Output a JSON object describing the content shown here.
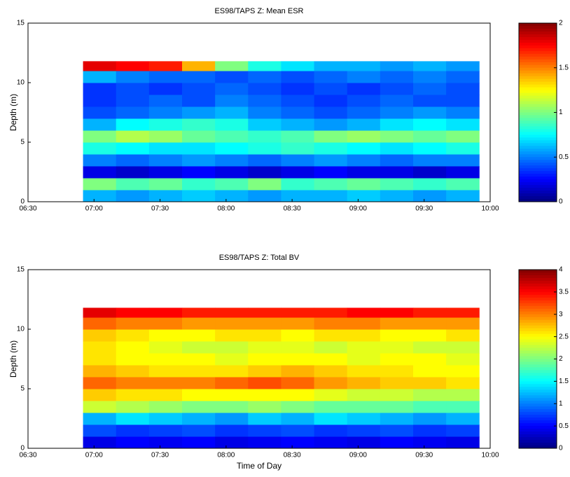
{
  "chart_data": [
    {
      "type": "heatmap",
      "title": "ES98/TAPS Z: Mean ESR",
      "ylabel": "Depth (m)",
      "colormap": "jet",
      "xlim": [
        "06:30",
        "10:00"
      ],
      "xticks": [
        "06:30",
        "07:00",
        "07:30",
        "08:00",
        "08:30",
        "09:00",
        "09:30",
        "10:00"
      ],
      "ylim": [
        0,
        15
      ],
      "yticks": [
        0,
        5,
        10,
        15
      ],
      "clim": [
        0,
        2
      ],
      "cticks": [
        0,
        0.5,
        1,
        1.5,
        2
      ],
      "xbins": [
        "06:55",
        "07:10",
        "07:25",
        "07:40",
        "07:55",
        "08:10",
        "08:25",
        "08:40",
        "08:55",
        "09:10",
        "09:25",
        "09:40",
        "09:55"
      ],
      "ybins": [
        0,
        1,
        2,
        3,
        4,
        5,
        6,
        7,
        8,
        9,
        10,
        11,
        11.8
      ],
      "values": [
        [
          0.6,
          0.55,
          0.6,
          0.65,
          0.6,
          0.55,
          0.6,
          0.6,
          0.65,
          0.6,
          0.55,
          0.6
        ],
        [
          1.0,
          0.9,
          0.95,
          0.85,
          0.9,
          1.0,
          0.85,
          0.9,
          0.95,
          0.9,
          0.85,
          0.9
        ],
        [
          0.2,
          0.15,
          0.2,
          0.25,
          0.2,
          0.15,
          0.2,
          0.25,
          0.2,
          0.2,
          0.15,
          0.2
        ],
        [
          0.5,
          0.45,
          0.5,
          0.55,
          0.5,
          0.45,
          0.5,
          0.55,
          0.5,
          0.45,
          0.5,
          0.5
        ],
        [
          0.8,
          0.75,
          0.7,
          0.7,
          0.75,
          0.8,
          0.85,
          0.8,
          0.75,
          0.7,
          0.75,
          0.8
        ],
        [
          1.0,
          1.1,
          1.05,
          0.95,
          0.9,
          0.85,
          0.9,
          1.0,
          1.05,
          1.0,
          0.95,
          1.0
        ],
        [
          0.6,
          0.75,
          0.8,
          0.85,
          0.8,
          0.65,
          0.6,
          0.55,
          0.6,
          0.7,
          0.75,
          0.7
        ],
        [
          0.4,
          0.45,
          0.5,
          0.55,
          0.6,
          0.5,
          0.45,
          0.4,
          0.45,
          0.5,
          0.55,
          0.5
        ],
        [
          0.35,
          0.4,
          0.45,
          0.4,
          0.5,
          0.45,
          0.4,
          0.35,
          0.4,
          0.45,
          0.4,
          0.4
        ],
        [
          0.35,
          0.4,
          0.35,
          0.4,
          0.45,
          0.4,
          0.35,
          0.4,
          0.35,
          0.4,
          0.45,
          0.4
        ],
        [
          0.6,
          0.5,
          0.45,
          0.45,
          0.4,
          0.45,
          0.4,
          0.45,
          0.5,
          0.45,
          0.5,
          0.45
        ],
        [
          1.8,
          1.75,
          1.7,
          1.4,
          1.0,
          0.8,
          0.7,
          0.6,
          0.6,
          0.55,
          0.6,
          0.55
        ]
      ]
    },
    {
      "type": "heatmap",
      "title": "ES98/TAPS Z:  Total BV",
      "ylabel": "Depth (m)",
      "xlabel": "Time of Day",
      "colormap": "jet",
      "xlim": [
        "06:30",
        "10:00"
      ],
      "xticks": [
        "06:30",
        "07:00",
        "07:30",
        "08:00",
        "08:30",
        "09:00",
        "09:30",
        "10:00"
      ],
      "ylim": [
        0,
        15
      ],
      "yticks": [
        0,
        5,
        10,
        15
      ],
      "clim": [
        0,
        4
      ],
      "cticks": [
        0,
        0.5,
        1,
        1.5,
        2,
        2.5,
        3,
        3.5,
        4
      ],
      "xbins": [
        "06:55",
        "07:10",
        "07:25",
        "07:40",
        "07:55",
        "08:10",
        "08:25",
        "08:40",
        "08:55",
        "09:10",
        "09:25",
        "09:40",
        "09:55"
      ],
      "ybins": [
        0,
        1,
        2,
        3,
        4,
        5,
        6,
        7,
        8,
        9,
        10,
        11,
        11.8
      ],
      "values": [
        [
          0.4,
          0.5,
          0.45,
          0.5,
          0.4,
          0.45,
          0.5,
          0.45,
          0.4,
          0.5,
          0.45,
          0.4
        ],
        [
          0.8,
          0.7,
          0.75,
          0.8,
          0.7,
          0.75,
          0.8,
          0.7,
          0.75,
          0.8,
          0.7,
          0.75
        ],
        [
          1.2,
          1.4,
          1.3,
          1.2,
          1.1,
          1.3,
          1.2,
          1.4,
          1.3,
          1.2,
          1.1,
          1.2
        ],
        [
          2.3,
          2.2,
          2.1,
          2.0,
          2.0,
          2.1,
          2.0,
          1.9,
          1.9,
          1.9,
          1.8,
          1.8
        ],
        [
          2.7,
          2.6,
          2.6,
          2.5,
          2.5,
          2.5,
          2.5,
          2.4,
          2.3,
          2.3,
          2.2,
          2.2
        ],
        [
          3.1,
          3.0,
          3.0,
          3.0,
          3.1,
          3.2,
          3.1,
          2.9,
          2.8,
          2.7,
          2.7,
          2.6
        ],
        [
          2.8,
          2.7,
          2.6,
          2.6,
          2.6,
          2.7,
          2.8,
          2.7,
          2.6,
          2.6,
          2.5,
          2.5
        ],
        [
          2.6,
          2.5,
          2.5,
          2.5,
          2.4,
          2.5,
          2.5,
          2.5,
          2.4,
          2.5,
          2.5,
          2.4
        ],
        [
          2.6,
          2.5,
          2.4,
          2.3,
          2.3,
          2.4,
          2.4,
          2.3,
          2.4,
          2.4,
          2.3,
          2.3
        ],
        [
          2.7,
          2.6,
          2.5,
          2.5,
          2.6,
          2.6,
          2.5,
          2.6,
          2.6,
          2.5,
          2.5,
          2.6
        ],
        [
          3.1,
          3.0,
          3.0,
          2.9,
          2.9,
          2.9,
          2.9,
          3.0,
          3.0,
          2.9,
          2.9,
          2.9
        ],
        [
          3.6,
          3.5,
          3.5,
          3.4,
          3.4,
          3.4,
          3.4,
          3.4,
          3.5,
          3.5,
          3.4,
          3.4
        ]
      ]
    }
  ]
}
